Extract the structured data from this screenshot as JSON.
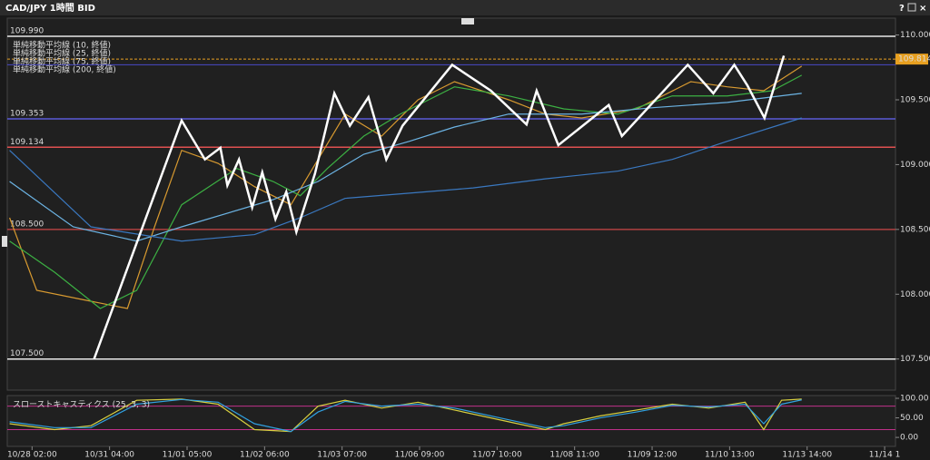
{
  "header": {
    "title": "CAD/JPY 1時間 BID",
    "buttons": [
      "?",
      "×"
    ]
  },
  "chart_data": [
    {
      "type": "line",
      "xlim": [
        -0.32,
        11.14
      ],
      "xticks": [
        {
          "value": 0,
          "label": "10/28 02:00"
        },
        {
          "value": 1,
          "label": "10/31 04:00"
        },
        {
          "value": 2,
          "label": "11/01 05:00"
        },
        {
          "value": 3,
          "label": "11/02 06:00"
        },
        {
          "value": 4,
          "label": "11/03 07:00"
        },
        {
          "value": 5,
          "label": "11/06 09:00"
        },
        {
          "value": 6,
          "label": "11/07 10:00"
        },
        {
          "value": 7,
          "label": "11/08 11:00"
        },
        {
          "value": 8,
          "label": "11/09 12:00"
        },
        {
          "value": 9,
          "label": "11/10 13:00"
        },
        {
          "value": 10,
          "label": "11/13 14:00"
        },
        {
          "value": 11,
          "label": "11/14 1"
        }
      ],
      "ylim": [
        107.26,
        110.13
      ],
      "yticks": [
        {
          "value": 110,
          "label": "110.000"
        },
        {
          "value": 109.5,
          "label": "109.500"
        },
        {
          "value": 109,
          "label": "109.000"
        },
        {
          "value": 108.5,
          "label": "108.500"
        },
        {
          "value": 108,
          "label": "108.000"
        },
        {
          "value": 107.5,
          "label": "107.500"
        }
      ],
      "levels": [
        {
          "value": 109.99,
          "label": "109.990",
          "color": "#e8e8e8"
        },
        {
          "value": 109.77,
          "color": "#4848c8"
        },
        {
          "value": 109.353,
          "label": "109.353",
          "color": "#5a5ad8"
        },
        {
          "value": 109.134,
          "label": "109.134",
          "color": "#e05050"
        },
        {
          "value": 108.5,
          "label": "108.500",
          "color": "#b04040"
        },
        {
          "value": 107.5,
          "label": "107.500",
          "color": "#e8e8e8"
        }
      ],
      "current": {
        "value": 109.814,
        "label": "109.814",
        "color": "#e8a020"
      },
      "series": [
        {
          "name": "単純移動平均線 (10, 終値)",
          "color": "#d89a30",
          "x": [
            -0.29,
            0.06,
            0.64,
            1.23,
            1.58,
            1.93,
            2.4,
            2.87,
            3.34,
            3.69,
            4.04,
            4.51,
            4.98,
            5.45,
            6.15,
            6.62,
            7.09,
            7.8,
            8.5,
            8.97,
            9.44,
            9.93
          ],
          "values": [
            108.59,
            108.03,
            107.96,
            107.89,
            108.52,
            109.11,
            109.01,
            108.83,
            108.69,
            109.04,
            109.39,
            109.22,
            109.5,
            109.64,
            109.5,
            109.39,
            109.36,
            109.43,
            109.64,
            109.6,
            109.57,
            109.76
          ]
        },
        {
          "name": "単純移動平均線 (25, 終値)",
          "color": "#3cb043",
          "x": [
            -0.29,
            0.29,
            0.88,
            1.35,
            1.93,
            2.64,
            3.11,
            3.46,
            3.81,
            4.28,
            4.75,
            5.45,
            6.15,
            6.86,
            7.56,
            8.26,
            8.97,
            9.55,
            9.93
          ],
          "values": [
            108.41,
            108.17,
            107.89,
            108.03,
            108.69,
            108.97,
            108.87,
            108.76,
            108.97,
            109.22,
            109.39,
            109.6,
            109.53,
            109.43,
            109.39,
            109.53,
            109.53,
            109.57,
            109.69
          ]
        },
        {
          "name": "単純移動平均線 (75, 終値)",
          "color": "#6cb4e4",
          "x": [
            -0.29,
            0.53,
            1.35,
            1.93,
            3.11,
            3.69,
            4.28,
            4.87,
            5.45,
            6.15,
            7.09,
            8.03,
            8.97,
            9.93
          ],
          "values": [
            108.87,
            108.52,
            108.41,
            108.52,
            108.73,
            108.87,
            109.08,
            109.18,
            109.29,
            109.39,
            109.39,
            109.44,
            109.48,
            109.55
          ]
        },
        {
          "name": "単純移動平均線 (200, 終値)",
          "color": "#3a78c0",
          "x": [
            -0.29,
            0.76,
            1.93,
            2.87,
            3.46,
            4.04,
            4.87,
            5.69,
            6.62,
            7.56,
            8.26,
            8.97,
            9.93
          ],
          "values": [
            109.11,
            108.52,
            108.41,
            108.46,
            108.59,
            108.74,
            108.78,
            108.82,
            108.89,
            108.95,
            109.04,
            109.18,
            109.36
          ]
        },
        {
          "color": "#ffffff",
          "x": [
            0.8,
            1.93,
            2.23,
            2.43,
            2.52,
            2.67,
            2.84,
            2.97,
            3.14,
            3.28,
            3.41,
            3.65,
            3.9,
            4.1,
            4.34,
            4.57,
            4.78,
            5.42,
            5.92,
            6.38,
            6.51,
            6.79,
            7.44,
            7.61,
            8.46,
            8.79,
            9.06,
            9.23,
            9.45,
            9.7
          ],
          "values": [
            107.5,
            109.34,
            109.04,
            109.13,
            108.84,
            109.04,
            108.67,
            108.94,
            108.58,
            108.79,
            108.48,
            108.93,
            109.55,
            109.3,
            109.52,
            109.04,
            109.3,
            109.77,
            109.57,
            109.31,
            109.57,
            109.15,
            109.46,
            109.22,
            109.77,
            109.55,
            109.77,
            109.61,
            109.36,
            109.84
          ]
        }
      ]
    },
    {
      "type": "line",
      "title": "スローストキャスティクス (25, 3, 3)",
      "xlim": [
        -0.32,
        11.14
      ],
      "ylim": [
        -23,
        107
      ],
      "yticks": [
        {
          "value": 100,
          "label": "100.00"
        },
        {
          "value": 50,
          "label": "50.00"
        },
        {
          "value": 0,
          "label": "0.00"
        }
      ],
      "levels": [
        {
          "value": 80,
          "color": "#c0308a"
        },
        {
          "value": 20,
          "color": "#c0308a"
        }
      ],
      "series": [
        {
          "color": "#d8d040",
          "x": [
            -0.29,
            0.29,
            0.76,
            1.35,
            1.93,
            2.4,
            2.87,
            3.34,
            3.69,
            4.04,
            4.51,
            4.98,
            5.45,
            6.15,
            6.62,
            6.86,
            7.33,
            7.8,
            8.26,
            8.73,
            9.2,
            9.44,
            9.67,
            9.93
          ],
          "values": [
            35,
            20,
            30,
            95,
            98,
            85,
            20,
            15,
            80,
            95,
            75,
            90,
            70,
            40,
            20,
            35,
            55,
            70,
            85,
            75,
            90,
            20,
            95,
            98
          ]
        },
        {
          "color": "#30a0e0",
          "x": [
            -0.29,
            0.29,
            0.76,
            1.35,
            1.93,
            2.4,
            2.87,
            3.34,
            3.69,
            4.04,
            4.51,
            4.98,
            5.45,
            6.15,
            6.62,
            6.86,
            7.33,
            7.8,
            8.26,
            8.73,
            9.2,
            9.44,
            9.67,
            9.93
          ],
          "values": [
            40,
            25,
            25,
            85,
            97,
            90,
            35,
            15,
            65,
            92,
            80,
            85,
            75,
            45,
            25,
            30,
            50,
            65,
            82,
            78,
            85,
            35,
            85,
            96
          ]
        }
      ]
    }
  ]
}
